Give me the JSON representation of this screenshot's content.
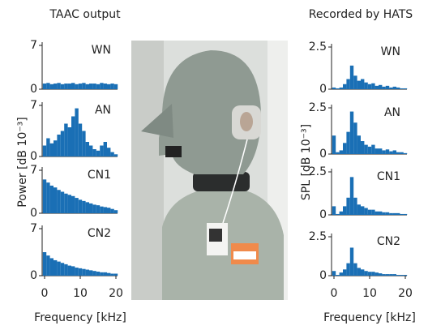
{
  "chart_data": [
    {
      "type": "bar",
      "title": "TAAC output",
      "y_label": "Power [dB 10⁻³]",
      "x_label": "Frequency [kHz]",
      "xlim": [
        0,
        20
      ],
      "xticks": [
        0,
        10,
        20
      ],
      "ylim": [
        0,
        7
      ],
      "yticks": [
        0,
        7
      ],
      "x": [
        0,
        1,
        2,
        3,
        4,
        5,
        6,
        7,
        8,
        9,
        10,
        11,
        12,
        13,
        14,
        15,
        16,
        17,
        18,
        19,
        20
      ],
      "series": [
        {
          "name": "WN",
          "color": "#1a6fb5",
          "values": [
            0.9,
            1.0,
            0.8,
            0.9,
            1.0,
            0.8,
            0.9,
            0.9,
            1.0,
            0.8,
            0.9,
            1.0,
            0.8,
            0.9,
            0.9,
            0.8,
            1.0,
            0.9,
            0.8,
            0.9,
            0.8
          ]
        },
        {
          "name": "AN",
          "color": "#1a6fb5",
          "values": [
            1.5,
            2.5,
            1.8,
            2.2,
            3.0,
            3.5,
            4.5,
            4.0,
            5.5,
            6.6,
            4.5,
            3.5,
            2.0,
            1.5,
            1.0,
            0.8,
            1.5,
            2.0,
            1.2,
            0.6,
            0.3
          ]
        },
        {
          "name": "CN1",
          "color": "#1a6fb5",
          "values": [
            5.5,
            5.0,
            4.5,
            4.2,
            3.8,
            3.5,
            3.2,
            3.0,
            2.8,
            2.5,
            2.2,
            2.0,
            1.8,
            1.6,
            1.4,
            1.3,
            1.1,
            1.0,
            0.9,
            0.7,
            0.5
          ]
        },
        {
          "name": "CN2",
          "color": "#1a6fb5",
          "values": [
            3.5,
            3.0,
            2.6,
            2.3,
            2.1,
            1.9,
            1.7,
            1.5,
            1.4,
            1.2,
            1.1,
            1.0,
            0.9,
            0.8,
            0.7,
            0.6,
            0.5,
            0.5,
            0.4,
            0.3,
            0.3
          ]
        }
      ]
    },
    {
      "type": "bar",
      "title": "Recorded by HATS",
      "y_label": "SPL [dB 10⁻³]",
      "x_label": "Frequency [kHz]",
      "xlim": [
        0,
        20
      ],
      "xticks": [
        0,
        10,
        20
      ],
      "ylim": [
        0,
        2.5
      ],
      "yticks": [
        0,
        2.5
      ],
      "x": [
        0,
        1,
        2,
        3,
        4,
        5,
        6,
        7,
        8,
        9,
        10,
        11,
        12,
        13,
        14,
        15,
        16,
        17,
        18,
        19,
        20
      ],
      "series": [
        {
          "name": "WN",
          "color": "#1a6fb5",
          "values": [
            0.1,
            0.05,
            0.1,
            0.3,
            0.6,
            1.4,
            0.8,
            0.5,
            0.6,
            0.4,
            0.3,
            0.35,
            0.2,
            0.25,
            0.15,
            0.2,
            0.1,
            0.15,
            0.1,
            0.05,
            0.05
          ]
        },
        {
          "name": "AN",
          "color": "#1a6fb5",
          "values": [
            1.0,
            0.1,
            0.2,
            0.6,
            1.2,
            2.3,
            1.7,
            1.0,
            0.7,
            0.5,
            0.4,
            0.5,
            0.3,
            0.3,
            0.2,
            0.25,
            0.15,
            0.2,
            0.1,
            0.1,
            0.05
          ]
        },
        {
          "name": "CN1",
          "color": "#1a6fb5",
          "values": [
            0.5,
            0.05,
            0.2,
            0.5,
            1.0,
            2.2,
            1.0,
            0.6,
            0.5,
            0.4,
            0.3,
            0.3,
            0.2,
            0.2,
            0.15,
            0.15,
            0.1,
            0.1,
            0.1,
            0.05,
            0.05
          ]
        },
        {
          "name": "CN2",
          "color": "#1a6fb5",
          "values": [
            0.3,
            0.05,
            0.2,
            0.4,
            0.8,
            1.8,
            0.8,
            0.5,
            0.4,
            0.3,
            0.25,
            0.25,
            0.2,
            0.15,
            0.1,
            0.1,
            0.1,
            0.1,
            0.05,
            0.05,
            0.05
          ]
        }
      ]
    }
  ]
}
